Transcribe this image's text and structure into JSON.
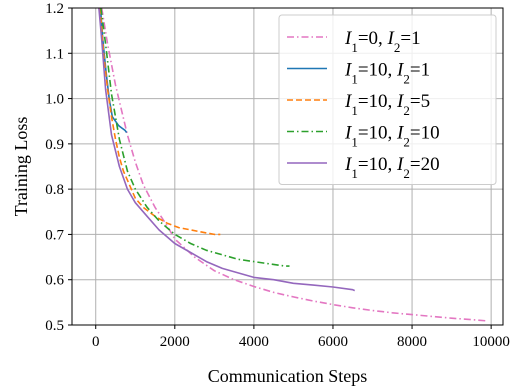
{
  "chart_data": {
    "type": "line",
    "title": "",
    "xlabel": "Communication Steps",
    "ylabel": "Training Loss",
    "xlim": [
      -600,
      10300
    ],
    "ylim": [
      0.5,
      1.2
    ],
    "xticks": [
      0,
      2000,
      4000,
      6000,
      8000,
      10000
    ],
    "yticks": [
      0.5,
      0.6,
      0.7,
      0.8,
      0.9,
      1.0,
      1.1,
      1.2
    ],
    "xtick_labels": [
      "0",
      "2000",
      "4000",
      "6000",
      "8000",
      "10000"
    ],
    "ytick_labels": [
      "0.5",
      "0.6",
      "0.7",
      "0.8",
      "0.9",
      "1.0",
      "1.1",
      "1.2"
    ],
    "grid": true,
    "legend_position": "top-right",
    "series": [
      {
        "name": "I1=0, I2=1",
        "label_parts": [
          [
            "I",
            "1"
          ],
          "=0, ",
          [
            "I",
            "2"
          ],
          "=1"
        ],
        "color": "#e377c2",
        "dash": "7,3,1.5,3",
        "x": [
          150,
          300,
          500,
          800,
          1000,
          1200,
          1500,
          1800,
          2000,
          2500,
          3000,
          3500,
          4000,
          4500,
          5000,
          5500,
          6000,
          6500,
          7000,
          7500,
          8000,
          8500,
          9000,
          9500,
          9900
        ],
        "y": [
          1.2,
          1.12,
          1.03,
          0.92,
          0.86,
          0.81,
          0.76,
          0.72,
          0.69,
          0.65,
          0.62,
          0.6,
          0.585,
          0.572,
          0.562,
          0.553,
          0.545,
          0.538,
          0.532,
          0.527,
          0.523,
          0.519,
          0.515,
          0.512,
          0.509
        ]
      },
      {
        "name": "I1=10, I2=1",
        "label_parts": [
          [
            "I",
            "1"
          ],
          "=10, ",
          [
            "I",
            "2"
          ],
          "=1"
        ],
        "color": "#1f77b4",
        "dash": "",
        "x": [
          120,
          180,
          260,
          340,
          420,
          500,
          580,
          660,
          740,
          780
        ],
        "y": [
          1.2,
          1.13,
          1.06,
          1.0,
          0.96,
          0.95,
          0.94,
          0.935,
          0.93,
          0.925
        ]
      },
      {
        "name": "I1=10, I2=5",
        "label_parts": [
          [
            "I",
            "1"
          ],
          "=10, ",
          [
            "I",
            "2"
          ],
          "=5"
        ],
        "color": "#ff7f0e",
        "dash": "6,3",
        "x": [
          110,
          200,
          300,
          400,
          500,
          600,
          700,
          800,
          1000,
          1200,
          1500,
          1800,
          2100,
          2400,
          2700,
          3000,
          3150
        ],
        "y": [
          1.2,
          1.1,
          1.02,
          0.96,
          0.91,
          0.87,
          0.84,
          0.82,
          0.78,
          0.76,
          0.74,
          0.725,
          0.715,
          0.71,
          0.705,
          0.7,
          0.7
        ]
      },
      {
        "name": "I1=10, I2=10",
        "label_parts": [
          [
            "I",
            "1"
          ],
          "=10, ",
          [
            "I",
            "2"
          ],
          "=10"
        ],
        "color": "#2ca02c",
        "dash": "7,3,1.5,3",
        "x": [
          130,
          250,
          400,
          600,
          800,
          1000,
          1300,
          1600,
          2000,
          2400,
          2800,
          3200,
          3600,
          4000,
          4400,
          4800,
          4900
        ],
        "y": [
          1.2,
          1.12,
          1.01,
          0.91,
          0.84,
          0.8,
          0.76,
          0.73,
          0.7,
          0.68,
          0.665,
          0.655,
          0.645,
          0.64,
          0.635,
          0.63,
          0.63
        ]
      },
      {
        "name": "I1=10, I2=20",
        "label_parts": [
          [
            "I",
            "1"
          ],
          "=10, ",
          [
            "I",
            "2"
          ],
          "=20"
        ],
        "color": "#9467bd",
        "dash": "",
        "x": [
          80,
          150,
          250,
          400,
          600,
          800,
          1000,
          1300,
          1600,
          2000,
          2400,
          2800,
          3200,
          3600,
          4000,
          4500,
          5000,
          5500,
          6000,
          6500,
          6550
        ],
        "y": [
          1.2,
          1.13,
          1.02,
          0.92,
          0.85,
          0.8,
          0.77,
          0.74,
          0.71,
          0.68,
          0.66,
          0.64,
          0.625,
          0.615,
          0.605,
          0.6,
          0.592,
          0.588,
          0.584,
          0.578,
          0.576
        ]
      }
    ]
  }
}
